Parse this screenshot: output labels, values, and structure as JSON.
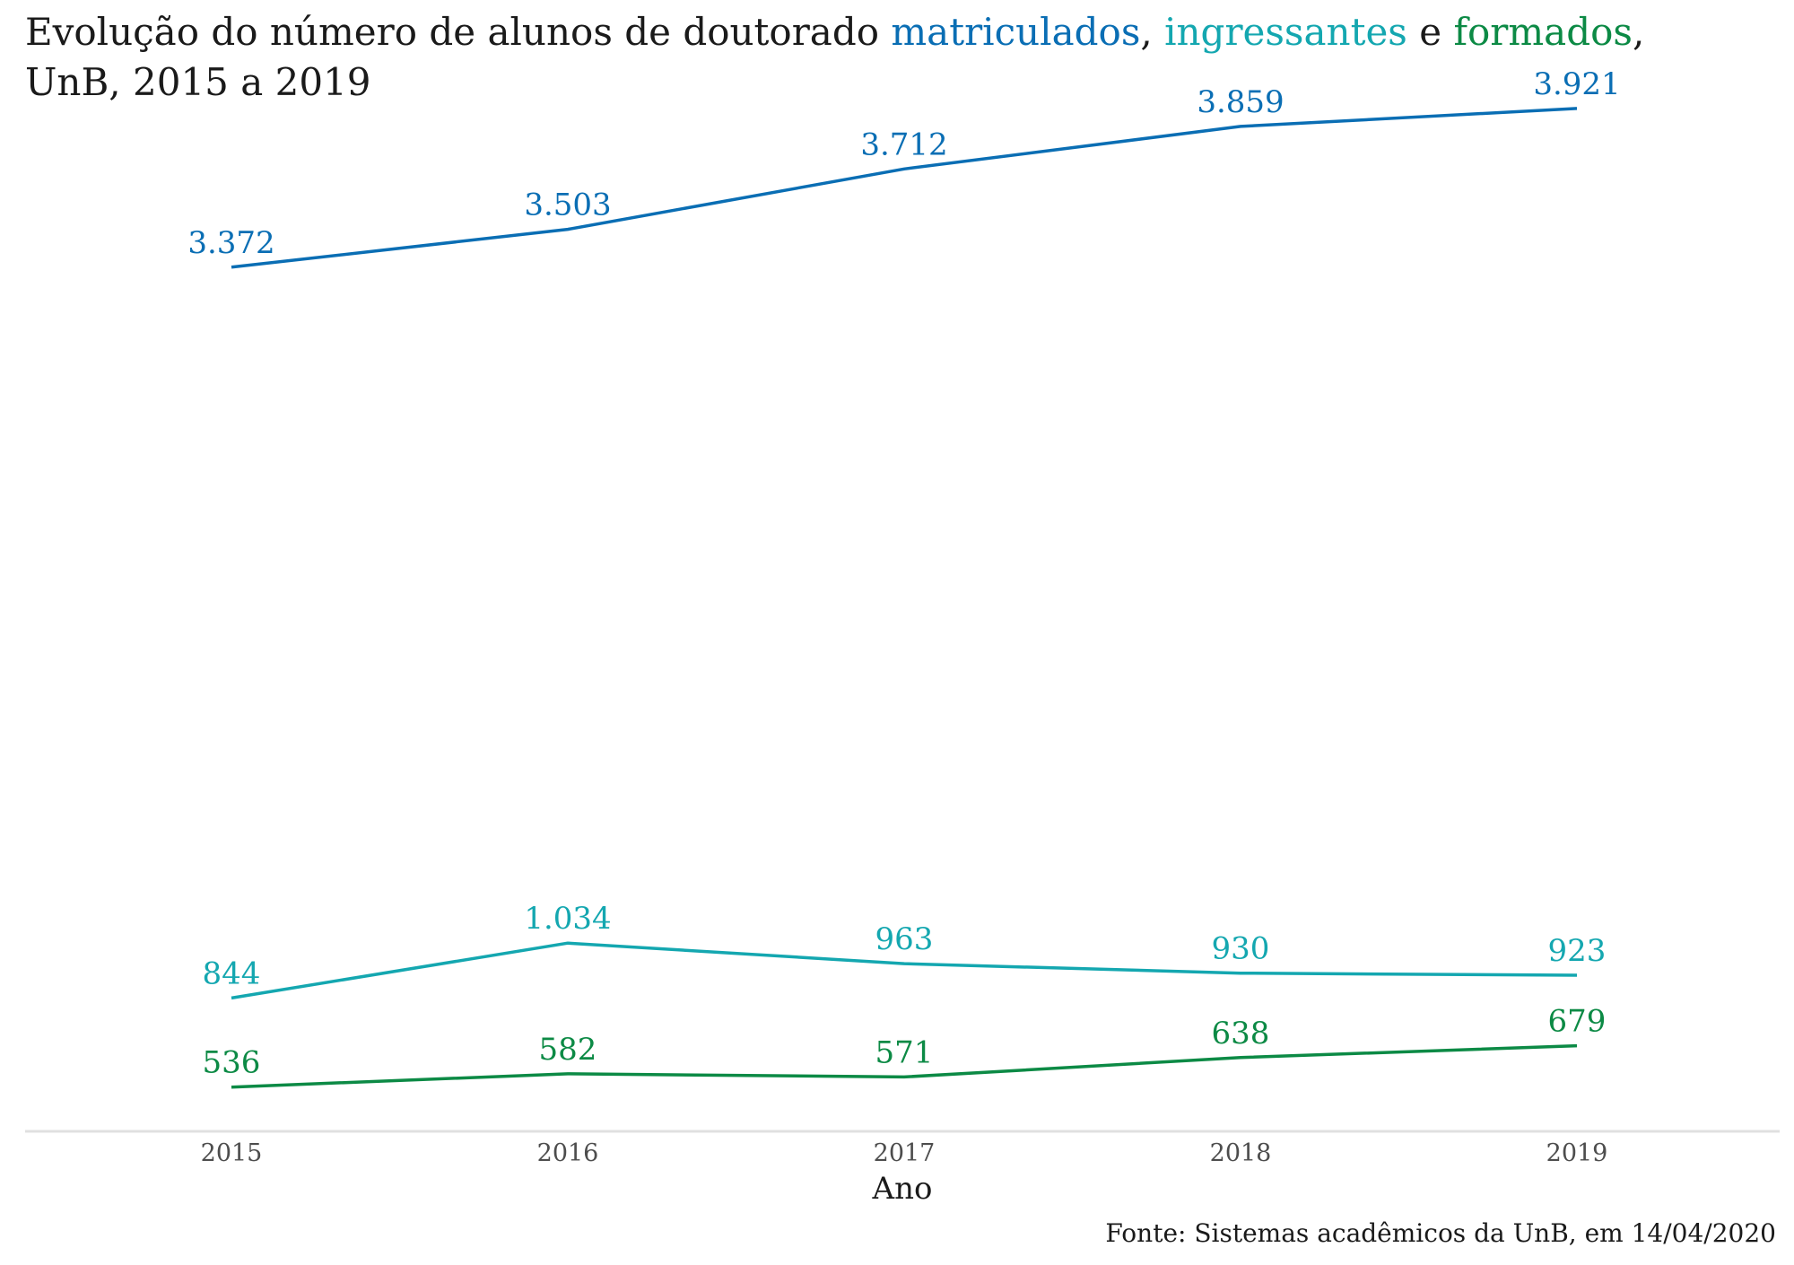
{
  "title": {
    "prefix": "Evolução do número de alunos de doutorado ",
    "s1": "matriculados",
    "sep1": ", ",
    "s2": "ingressantes",
    "sep2": " e ",
    "s3": "formados",
    "suffix": ",",
    "line2": "UnB, 2015 a 2019"
  },
  "caption": "Fonte: Sistemas acadêmicos da UnB, em 14/04/2020",
  "colors": {
    "matriculados": "#0a6eb4",
    "ingressantes": "#14a7b0",
    "formados": "#0c8a45",
    "axis": "#e0e0e0",
    "tick_text": "#4d4d4d",
    "text": "#1a1a1a"
  },
  "chart_data": {
    "type": "line",
    "title": "Evolução do número de alunos de doutorado matriculados, ingressantes e formados, UnB, 2015 a 2019",
    "xlabel": "Ano",
    "ylabel": "",
    "categories": [
      "2015",
      "2016",
      "2017",
      "2018",
      "2019"
    ],
    "ylim": [
      383,
      4110
    ],
    "grid": false,
    "legend": "none (series named in title)",
    "series": [
      {
        "name": "matriculados",
        "color": "#0a6eb4",
        "values": [
          3372,
          3503,
          3712,
          3859,
          3921
        ],
        "labels": [
          "3.372",
          "3.503",
          "3.712",
          "3.859",
          "3.921"
        ]
      },
      {
        "name": "ingressantes",
        "color": "#14a7b0",
        "values": [
          844,
          1034,
          963,
          930,
          923
        ],
        "labels": [
          "844",
          "1.034",
          "963",
          "930",
          "923"
        ]
      },
      {
        "name": "formados",
        "color": "#0c8a45",
        "values": [
          536,
          582,
          571,
          638,
          679
        ],
        "labels": [
          "536",
          "582",
          "571",
          "638",
          "679"
        ]
      }
    ]
  }
}
